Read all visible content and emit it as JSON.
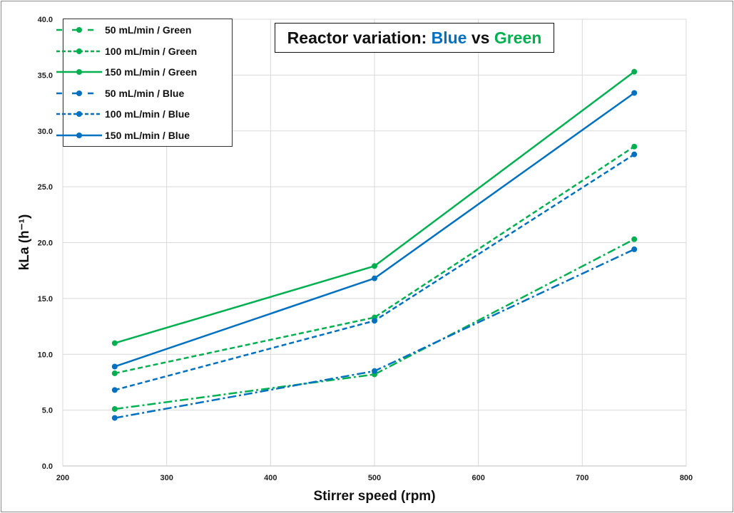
{
  "chart_data": {
    "type": "line",
    "title": {
      "prefix": "Reactor variation: ",
      "blue_word": "Blue",
      "middle": " vs ",
      "green_word": "Green"
    },
    "xlabel": "Stirrer speed (rpm)",
    "ylabel": "kLa (h⁻¹)",
    "xlim": [
      200,
      800
    ],
    "ylim": [
      0,
      40
    ],
    "xticks": [
      "200",
      "300",
      "400",
      "500",
      "600",
      "700",
      "800"
    ],
    "yticks": [
      "0.0",
      "5.0",
      "10.0",
      "15.0",
      "20.0",
      "25.0",
      "30.0",
      "35.0",
      "40.0"
    ],
    "grid": true,
    "legend_position": "top-left",
    "x": [
      250,
      500,
      750
    ],
    "colors": {
      "green": "#00b050",
      "blue": "#0070c0"
    },
    "series": [
      {
        "name": "50 mL/min / Green",
        "color": "#00b050",
        "style": "dashdot",
        "values": [
          5.1,
          8.2,
          20.3
        ]
      },
      {
        "name": "100 mL/min / Green",
        "color": "#00b050",
        "style": "dashed",
        "values": [
          8.3,
          13.3,
          28.6
        ]
      },
      {
        "name": "150 mL/min / Green",
        "color": "#00b050",
        "style": "solid",
        "values": [
          11.0,
          17.9,
          35.3
        ]
      },
      {
        "name": "50 mL/min / Blue",
        "color": "#0070c0",
        "style": "dashdot",
        "values": [
          4.3,
          8.5,
          19.4
        ]
      },
      {
        "name": "100 mL/min / Blue",
        "color": "#0070c0",
        "style": "dashed",
        "values": [
          6.8,
          13.0,
          27.9
        ]
      },
      {
        "name": "150 mL/min / Blue",
        "color": "#0070c0",
        "style": "solid",
        "values": [
          8.9,
          16.8,
          33.4
        ]
      }
    ]
  }
}
